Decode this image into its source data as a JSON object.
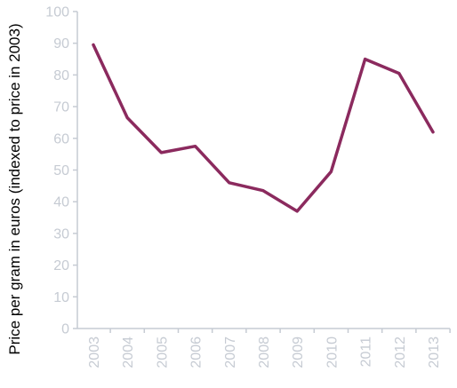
{
  "chart_data": {
    "type": "line",
    "title": "",
    "xlabel": "",
    "ylabel": "Price per gram in euros (indexed to price in 2003)",
    "ylim": [
      0,
      100
    ],
    "yticks": [
      "0",
      "10",
      "20",
      "30",
      "40",
      "50",
      "60",
      "70",
      "80",
      "90",
      "100"
    ],
    "categories": [
      "2003",
      "2004",
      "2005",
      "2006",
      "2007",
      "2008",
      "2009",
      "2010",
      "2011",
      "2012",
      "2013"
    ],
    "series": [
      {
        "values": [
          89.5,
          66.5,
          55.5,
          57.5,
          46,
          43.5,
          37,
          49.5,
          85,
          80.5,
          62
        ]
      }
    ],
    "grid": false,
    "legend": "none",
    "colors": {
      "line": "#8b2a5e",
      "axis": "#c6cbd3",
      "tick_text": "#c6cbd3",
      "axis_title": "#000000"
    }
  }
}
